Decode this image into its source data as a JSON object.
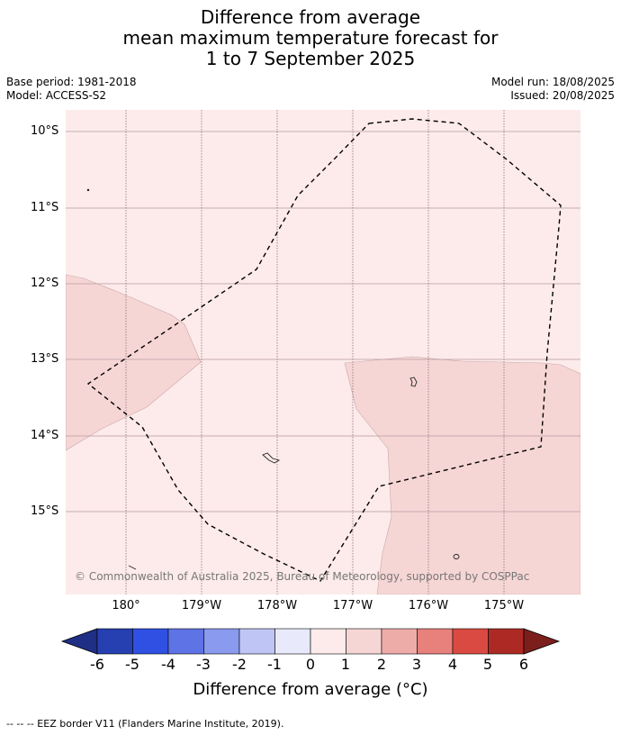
{
  "title": {
    "line1": "Difference from average",
    "line2": "mean maximum temperature forecast for",
    "line3": "1 to 7 September 2025"
  },
  "meta": {
    "base_period": "Base period: 1981-2018",
    "model": "Model: ACCESS-S2",
    "model_run": "Model run: 18/08/2025",
    "issued": "Issued: 20/08/2025"
  },
  "map": {
    "lat_labels": [
      "10°S",
      "11°S",
      "12°S",
      "13°S",
      "14°S",
      "15°S"
    ],
    "lon_labels": [
      "180°",
      "179°W",
      "178°W",
      "177°W",
      "176°W",
      "175°W"
    ],
    "colors": {
      "background": "#fcebea",
      "warm_region": "#f6d6d5",
      "grid": "#b89aa0"
    },
    "copyright": "© Commonwealth of Australia 2025, Bureau of Meteorology, supported by COSPPac"
  },
  "colorbar": {
    "ticks": [
      "-6",
      "-5",
      "-4",
      "-3",
      "-2",
      "-1",
      "0",
      "1",
      "2",
      "3",
      "4",
      "5",
      "6"
    ],
    "colors": [
      "#1f2f86",
      "#263fb1",
      "#3050e3",
      "#5e73e6",
      "#8a9aee",
      "#bfc6f5",
      "#e8eafb",
      "#fcebea",
      "#f6d6d5",
      "#eeaca9",
      "#e8807b",
      "#da4a42",
      "#ad2a24",
      "#7c1f1c"
    ],
    "label": "Difference from average (°C)"
  },
  "footnote": "--  --  -- EEZ border V11 (Flanders Marine Institute, 2019)."
}
